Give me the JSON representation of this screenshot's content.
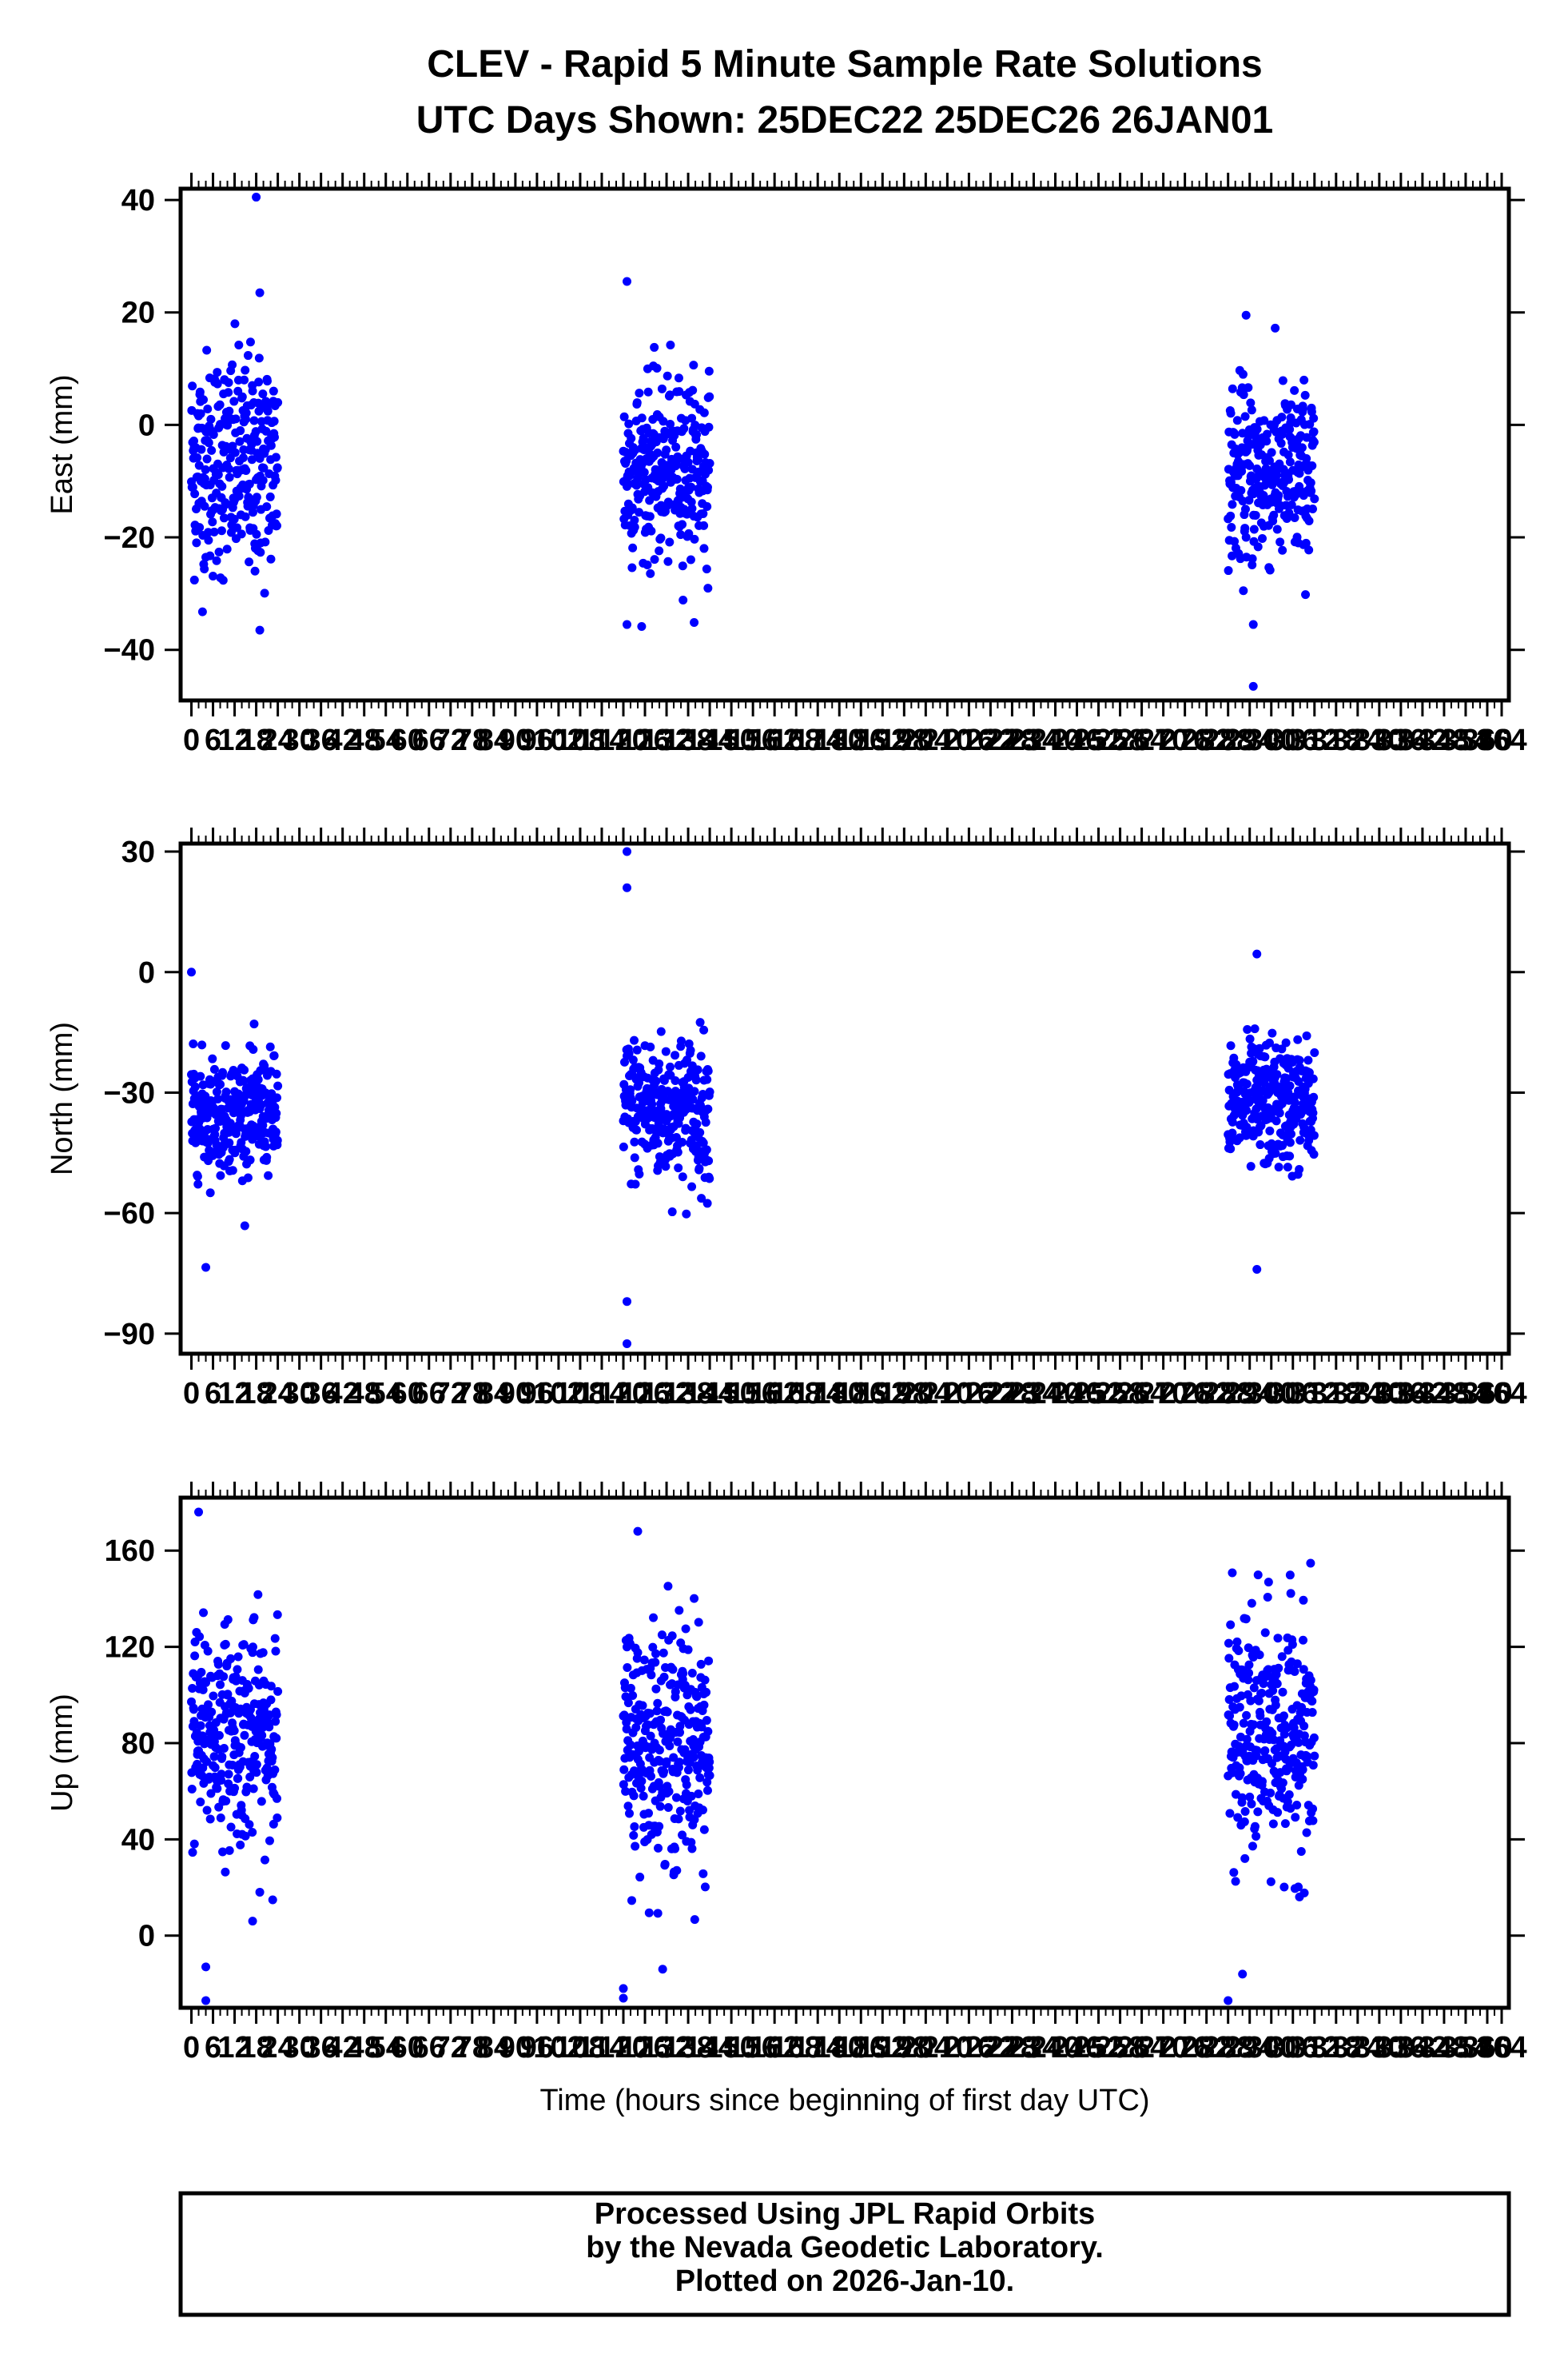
{
  "title": {
    "line1": "CLEV - Rapid 5 Minute Sample Rate Solutions",
    "line2": "UTC Days Shown:  25DEC22 25DEC26 26JAN01"
  },
  "footer": {
    "line1": "Processed Using JPL Rapid Orbits",
    "line2": "by the Nevada Geodetic Laboratory.",
    "line3": "Plotted on 2026-Jan-10."
  },
  "chart_data": [
    {
      "type": "scatter",
      "panel": "east",
      "ylabel": "East (mm)",
      "xlabel": "",
      "xlim": [
        -3,
        366
      ],
      "ylim": [
        -49,
        42
      ],
      "yticks": [
        -40,
        -20,
        0,
        20,
        40
      ],
      "xticks": [
        0,
        6,
        12,
        18,
        24,
        30,
        36,
        42,
        48,
        54,
        60,
        66,
        72,
        78,
        84,
        90,
        96,
        102,
        108,
        114,
        120,
        126,
        132,
        138,
        144,
        150,
        156,
        162,
        168,
        174,
        180,
        186,
        192,
        198,
        204,
        210,
        216,
        222,
        228,
        234,
        240,
        246,
        252,
        258,
        264,
        270,
        276,
        282,
        288,
        294,
        300,
        306,
        312,
        318,
        324,
        330,
        336,
        342,
        348,
        354,
        360,
        364
      ],
      "color": "#0000ff",
      "clusters": [
        {
          "x_range": [
            0,
            24
          ],
          "mean": -7,
          "spread": 10,
          "min": -37,
          "max": 41
        },
        {
          "x_range": [
            120,
            144
          ],
          "mean": -8,
          "spread": 8,
          "min": -36,
          "max": 26
        },
        {
          "x_range": [
            288,
            312
          ],
          "mean": -9,
          "spread": 8,
          "min": -47,
          "max": 20
        }
      ],
      "notable_points": [
        [
          18,
          40.5
        ],
        [
          19,
          23.5
        ],
        [
          19,
          -36.5
        ],
        [
          121,
          25.5
        ],
        [
          121,
          -35.5
        ],
        [
          295,
          -46.5
        ],
        [
          293,
          19.5
        ],
        [
          295,
          -35.5
        ]
      ]
    },
    {
      "type": "scatter",
      "panel": "north",
      "ylabel": "North (mm)",
      "xlabel": "",
      "xlim": [
        -3,
        366
      ],
      "ylim": [
        -95,
        32
      ],
      "yticks": [
        -90,
        -60,
        -30,
        0,
        30
      ],
      "xticks": [
        0,
        6,
        12,
        18,
        24,
        30,
        36,
        42,
        48,
        54,
        60,
        66,
        72,
        78,
        84,
        90,
        96,
        102,
        108,
        114,
        120,
        126,
        132,
        138,
        144,
        150,
        156,
        162,
        168,
        174,
        180,
        186,
        192,
        198,
        204,
        210,
        216,
        222,
        228,
        234,
        240,
        246,
        252,
        258,
        264,
        270,
        276,
        282,
        288,
        294,
        300,
        306,
        312,
        318,
        324,
        330,
        336,
        342,
        348,
        354,
        360,
        364
      ],
      "color": "#0000ff",
      "clusters": [
        {
          "x_range": [
            0,
            24
          ],
          "mean": -35,
          "spread": 7,
          "min": -74,
          "max": 0
        },
        {
          "x_range": [
            120,
            144
          ],
          "mean": -34,
          "spread": 9,
          "min": -93,
          "max": 30
        },
        {
          "x_range": [
            288,
            312
          ],
          "mean": -33,
          "spread": 8,
          "min": -74,
          "max": 5
        }
      ],
      "notable_points": [
        [
          0,
          0
        ],
        [
          4,
          -73.5
        ],
        [
          121,
          30
        ],
        [
          121,
          21
        ],
        [
          121,
          -82
        ],
        [
          121,
          -92.5
        ],
        [
          296,
          4.5
        ],
        [
          296,
          -74
        ]
      ]
    },
    {
      "type": "scatter",
      "panel": "up",
      "ylabel": "Up (mm)",
      "xlabel": "Time (hours since beginning of first day UTC)",
      "xlim": [
        -3,
        366
      ],
      "ylim": [
        -30,
        182
      ],
      "yticks": [
        0,
        40,
        80,
        120,
        160
      ],
      "xticks": [
        0,
        6,
        12,
        18,
        24,
        30,
        36,
        42,
        48,
        54,
        60,
        66,
        72,
        78,
        84,
        90,
        96,
        102,
        108,
        114,
        120,
        126,
        132,
        138,
        144,
        150,
        156,
        162,
        168,
        174,
        180,
        186,
        192,
        198,
        204,
        210,
        216,
        222,
        228,
        234,
        240,
        246,
        252,
        258,
        264,
        270,
        276,
        282,
        288,
        294,
        300,
        306,
        312,
        318,
        324,
        330,
        336,
        342,
        348,
        354,
        360,
        364
      ],
      "color": "#0000ff",
      "clusters": [
        {
          "x_range": [
            0,
            24
          ],
          "mean": 84,
          "spread": 22,
          "min": -27,
          "max": 177
        },
        {
          "x_range": [
            120,
            144
          ],
          "mean": 80,
          "spread": 25,
          "min": -27,
          "max": 168
        },
        {
          "x_range": [
            288,
            312
          ],
          "mean": 82,
          "spread": 25,
          "min": -27,
          "max": 158
        }
      ],
      "notable_points": [
        [
          2,
          176
        ],
        [
          4,
          -27
        ],
        [
          4,
          -13
        ],
        [
          17,
          6
        ],
        [
          120,
          -26
        ],
        [
          120,
          -22
        ],
        [
          124,
          168
        ],
        [
          288,
          -27
        ],
        [
          292,
          -16
        ]
      ]
    }
  ]
}
